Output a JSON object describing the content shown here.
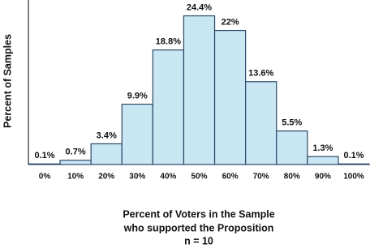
{
  "chart_data": {
    "type": "bar",
    "categories": [
      "0%",
      "10%",
      "20%",
      "30%",
      "40%",
      "50%",
      "60%",
      "70%",
      "80%",
      "90%",
      "100%"
    ],
    "values": [
      0.1,
      0.7,
      3.4,
      9.9,
      18.8,
      24.4,
      22,
      13.6,
      5.5,
      1.3,
      0.1
    ],
    "value_labels": [
      "0.1%",
      "0.7%",
      "3.4%",
      "9.9%",
      "18.8%",
      "24.4%",
      "22%",
      "13.6%",
      "5.5%",
      "1.3%",
      "0.1%"
    ],
    "color": "#c9e7f3",
    "edge_color": "#2b4868",
    "ylim": [
      0,
      27
    ],
    "ylabel": "Percent of Samples",
    "xlabel": [
      "Percent of Voters in the Sample",
      "who supported the Proposition"
    ],
    "note": "n = 10"
  }
}
